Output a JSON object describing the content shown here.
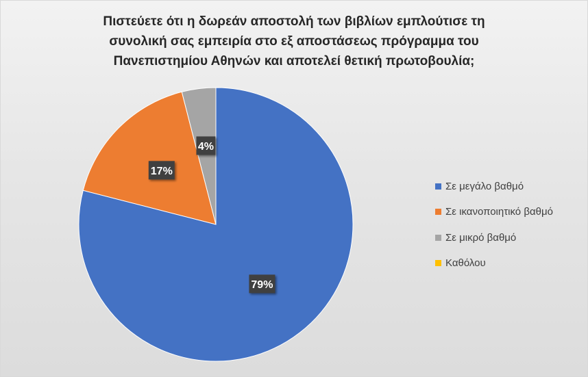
{
  "chart_data": {
    "type": "pie",
    "title_lines": [
      "Πιστεύετε ότι η δωρεάν αποστολή των βιβλίων εμπλούτισε τη",
      "συνολική σας εμπειρία στο εξ αποστάσεως πρόγραμμα του",
      "Πανεπιστημίου Αθηνών και αποτελεί θετική πρωτοβουλία;"
    ],
    "categories": [
      "Σε μεγάλο βαθμό",
      "Σε ικανοποιητικό βαθμό",
      "Σε μικρό βαθμό",
      "Καθόλου"
    ],
    "values": [
      79,
      17,
      4,
      0
    ],
    "data_labels": [
      "79%",
      "17%",
      "4%",
      ""
    ],
    "colors": [
      "#4472c4",
      "#ed7d31",
      "#a5a5a5",
      "#ffc000"
    ],
    "legend_position": "right"
  }
}
